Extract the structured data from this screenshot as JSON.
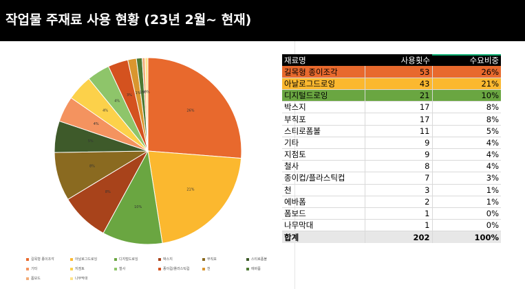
{
  "title": "작업물 주재료 사용 현황 (23년 2월~ 현재)",
  "table": {
    "headers": [
      "재료명",
      "사용횟수",
      "수요비중"
    ],
    "rows": [
      {
        "name": "길목형 종이조각",
        "count": "53",
        "share": "26%",
        "bg": "#e8692d"
      },
      {
        "name": "아날로그드로잉",
        "count": "43",
        "share": "21%",
        "bg": "#fbb82f"
      },
      {
        "name": "디지털드로잉",
        "count": "21",
        "share": "10%",
        "bg": "#6aa641"
      },
      {
        "name": "박스지",
        "count": "17",
        "share": "8%",
        "bg": ""
      },
      {
        "name": "부직포",
        "count": "17",
        "share": "8%",
        "bg": ""
      },
      {
        "name": "스티로폼볼",
        "count": "11",
        "share": "5%",
        "bg": ""
      },
      {
        "name": "기타",
        "count": "9",
        "share": "4%",
        "bg": ""
      },
      {
        "name": "지점토",
        "count": "9",
        "share": "4%",
        "bg": ""
      },
      {
        "name": "철사",
        "count": "8",
        "share": "4%",
        "bg": ""
      },
      {
        "name": "종이컵/플라스틱컵",
        "count": "7",
        "share": "3%",
        "bg": ""
      },
      {
        "name": "천",
        "count": "3",
        "share": "1%",
        "bg": ""
      },
      {
        "name": "에바폼",
        "count": "2",
        "share": "1%",
        "bg": ""
      },
      {
        "name": "폼보드",
        "count": "1",
        "share": "0%",
        "bg": ""
      },
      {
        "name": "나무막대",
        "count": "1",
        "share": "0%",
        "bg": ""
      }
    ],
    "total": {
      "name": "합계",
      "count": "202",
      "share": "100%"
    }
  },
  "chart_data": {
    "type": "pie",
    "categories": [
      "길목형 종이조각",
      "아날로그드로잉",
      "디지털드로잉",
      "박스지",
      "부직포",
      "스티로폼볼",
      "기타",
      "지점토",
      "철사",
      "종이컵/플라스틱컵",
      "천",
      "에바폼",
      "폼보드",
      "나무막대"
    ],
    "values": [
      53,
      43,
      21,
      17,
      17,
      11,
      9,
      9,
      8,
      7,
      3,
      2,
      1,
      1
    ],
    "slice_labels": [
      "26%",
      "21%",
      "10%",
      "8%",
      "8%",
      "5%",
      "4%",
      "4%",
      "4%",
      "3%",
      "1%",
      "1%",
      "0%",
      "0%"
    ],
    "colors": [
      "#e8692d",
      "#fbb82f",
      "#6aa641",
      "#a8431b",
      "#8a6a20",
      "#3e5a2a",
      "#f4935f",
      "#fcd14a",
      "#8ec56a",
      "#d4521f",
      "#d9962f",
      "#4d7a33",
      "#f2ac78",
      "#fde28a"
    ],
    "legend": {
      "position": "bottom"
    }
  }
}
